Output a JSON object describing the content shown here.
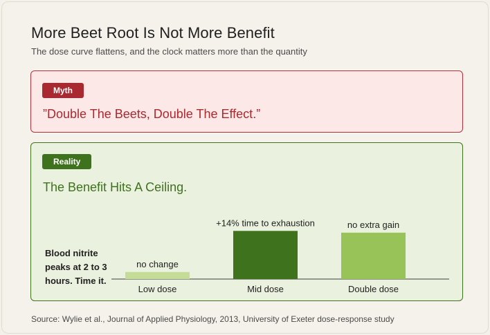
{
  "header": {
    "title": "More Beet Root Is Not More Benefit",
    "subtitle": "The dose curve flattens, and the clock matters more than the quantity"
  },
  "myth": {
    "badge": "Myth",
    "quote": "”Double The Beets, Double The Effect.”"
  },
  "reality": {
    "badge": "Reality",
    "heading": "The Benefit Hits A Ceiling."
  },
  "colors": {
    "myth_red": "#a82a30",
    "reality_green": "#3f721c",
    "low_bar": "#c4dc98",
    "mid_bar": "#3f721c",
    "double_bar": "#98c359"
  },
  "chart_data": {
    "type": "bar",
    "categories": [
      "Low dose",
      "Mid dose",
      "Double dose"
    ],
    "values": [
      1.2,
      8.2,
      7.9
    ],
    "data_labels": [
      "no change",
      "+14% time to exhaustion",
      "no extra gain"
    ],
    "bar_colors": [
      "#c4dc98",
      "#3f721c",
      "#98c359"
    ],
    "annotation": "Blood nitrite peaks at 2 to 3 hours. Time it.",
    "ylim": [
      0,
      10
    ],
    "axis": {
      "y_visible": false,
      "grid": false
    }
  },
  "footer": {
    "source": "Source: Wylie et al., Journal of Applied Physiology, 2013, University of Exeter dose-response study"
  }
}
